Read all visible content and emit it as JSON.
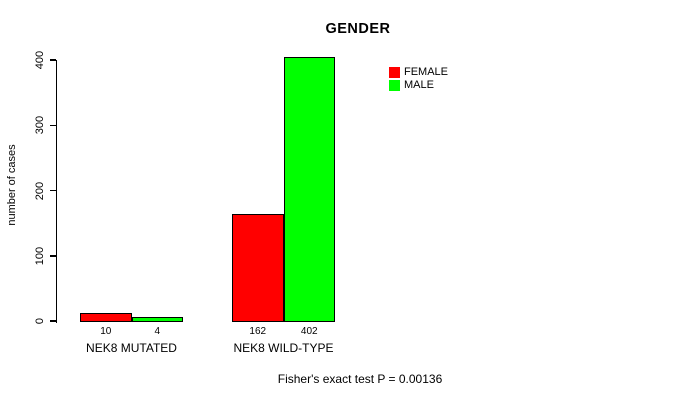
{
  "chart_data": {
    "type": "bar",
    "title": "GENDER",
    "xlabel": "",
    "ylabel": "number of cases",
    "ylim": [
      0,
      400
    ],
    "yticks": [
      0,
      100,
      200,
      300,
      400
    ],
    "categories": [
      "NEK8 MUTATED",
      "NEK8 WILD-TYPE"
    ],
    "series": [
      {
        "name": "FEMALE",
        "color": "#ff0000",
        "values": [
          10,
          162
        ]
      },
      {
        "name": "MALE",
        "color": "#00ff00",
        "values": [
          4,
          402
        ]
      }
    ],
    "bar_value_labels": [
      [
        10,
        4
      ],
      [
        162,
        402
      ]
    ],
    "annotation": "Fisher's exact test P = 0.00136",
    "legend_position": "top-right",
    "grid": false,
    "bar_border_color": "#000000",
    "text_color": "#000000",
    "background_color": "#ffffff"
  }
}
